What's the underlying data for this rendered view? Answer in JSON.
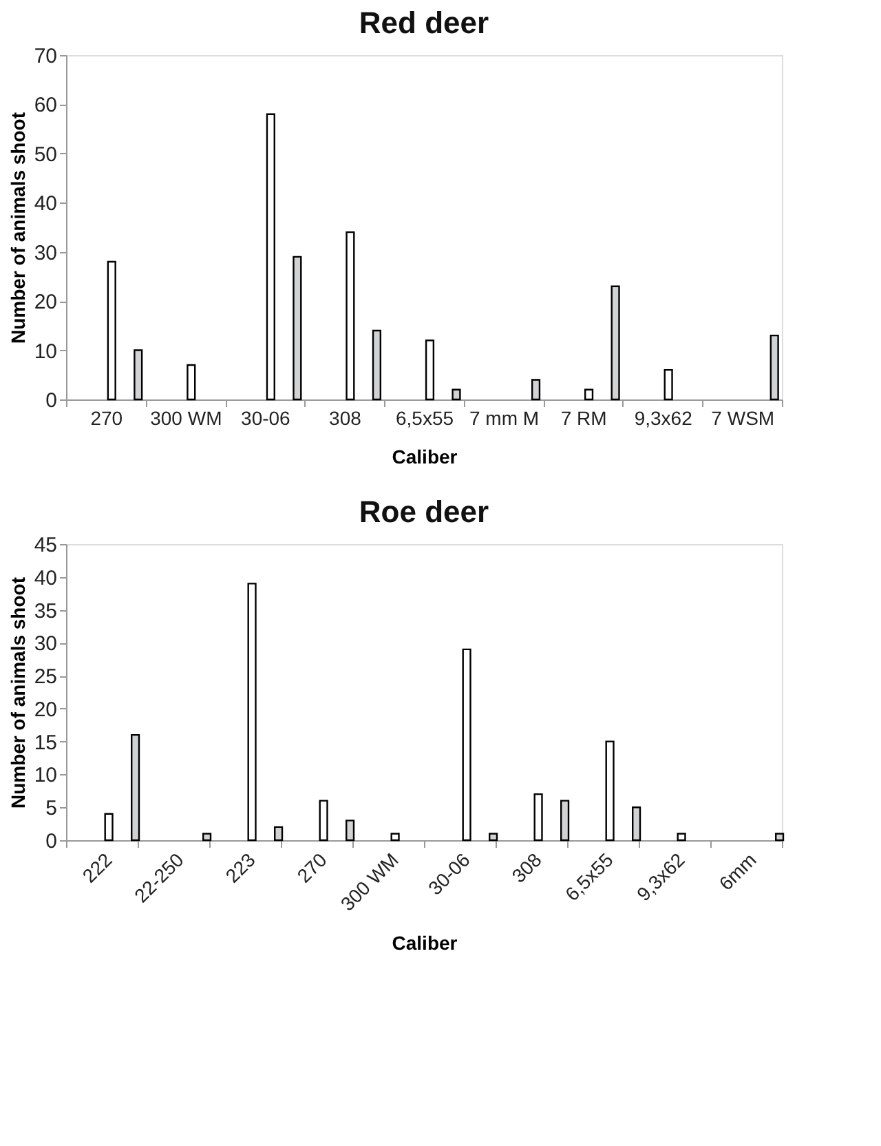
{
  "chart_data": [
    {
      "type": "bar",
      "title": "Red deer",
      "xlabel": "Caliber",
      "ylabel": "Number of animals shoot",
      "categories": [
        "270",
        "300 WM",
        "30-06",
        "308",
        "6,5x55",
        "7 mm M",
        "7 RM",
        "9,3x62",
        "7 WSM"
      ],
      "series": [
        {
          "color": "#ffffff",
          "values": [
            28,
            7,
            58,
            34,
            12,
            null,
            2,
            6,
            null
          ]
        },
        {
          "color": "#d0d2d3",
          "values": [
            10,
            null,
            29,
            14,
            2,
            4,
            23,
            null,
            13
          ]
        }
      ],
      "ylim": [
        0,
        70
      ],
      "yticks": [
        0,
        10,
        20,
        30,
        40,
        50,
        60,
        70
      ],
      "grid": false,
      "legend": false
    },
    {
      "type": "bar",
      "title": "Roe deer",
      "xlabel": "Caliber",
      "ylabel": "Number of animals shoot",
      "categories": [
        "222",
        "22-250",
        "223",
        "270",
        "300 WM",
        "30-06",
        "308",
        "6,5x55",
        "9,3x62",
        "6mm"
      ],
      "series": [
        {
          "color": "#ffffff",
          "values": [
            4,
            null,
            39,
            6,
            1,
            29,
            7,
            15,
            1,
            null
          ]
        },
        {
          "color": "#d0d2d3",
          "values": [
            16,
            1,
            2,
            3,
            null,
            1,
            6,
            5,
            null,
            1
          ]
        }
      ],
      "ylim": [
        0,
        45
      ],
      "yticks": [
        0,
        5,
        10,
        15,
        20,
        25,
        30,
        35,
        40,
        45
      ],
      "grid": false,
      "legend": false
    }
  ]
}
